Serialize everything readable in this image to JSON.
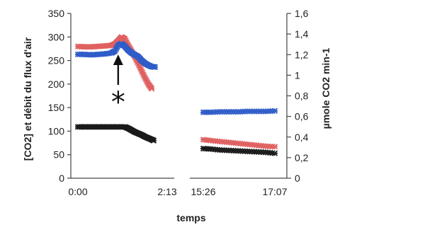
{
  "chart_data": {
    "type": "scatter",
    "x_tick_labels": [
      "0:00",
      "2:13",
      "15:26",
      "17:07"
    ],
    "xlabel": "temps",
    "ylabel_left": "[CO2] et débit du flux d'air",
    "ylabel_right": "µmole CO2 min-1",
    "ylim_left": [
      0,
      350
    ],
    "ylim_right": [
      0,
      1.6
    ],
    "yticks_left": [
      "0",
      "50",
      "100",
      "150",
      "200",
      "250",
      "300",
      "350"
    ],
    "yticks_right": [
      "0",
      "0,2",
      "0,4",
      "0,6",
      "0,8",
      "1",
      "1,2",
      "1,4",
      "1,6"
    ],
    "annotation_symbol": "*",
    "colors": {
      "red": "#e06060",
      "blue": "#2f5cc8",
      "black": "#1a1a1a"
    },
    "series": [
      {
        "color": "red",
        "segments": [
          [
            [
              0,
              280
            ],
            [
              10,
              279
            ],
            [
              20,
              279
            ],
            [
              30,
              280
            ],
            [
              40,
              281
            ],
            [
              50,
              282
            ],
            [
              55,
              285
            ],
            [
              60,
              292
            ],
            [
              65,
              300
            ],
            [
              70,
              296
            ],
            [
              75,
              282
            ],
            [
              80,
              270
            ],
            [
              85,
              257
            ],
            [
              90,
              243
            ],
            [
              95,
              228
            ],
            [
              100,
              213
            ],
            [
              105,
              200
            ],
            [
              110,
              190
            ]
          ],
          [
            [
              172,
              82
            ],
            [
              180,
              80
            ],
            [
              190,
              78
            ],
            [
              200,
              76
            ],
            [
              210,
              74
            ],
            [
              220,
              72
            ],
            [
              230,
              70
            ],
            [
              240,
              68
            ],
            [
              250,
              67
            ]
          ]
        ]
      },
      {
        "color": "blue",
        "segments": [
          [
            [
              0,
              263
            ],
            [
              10,
              263
            ],
            [
              20,
              262
            ],
            [
              30,
              263
            ],
            [
              40,
              264
            ],
            [
              50,
              266
            ],
            [
              55,
              270
            ],
            [
              60,
              282
            ],
            [
              65,
              286
            ],
            [
              70,
              280
            ],
            [
              75,
              272
            ],
            [
              80,
              266
            ],
            [
              85,
              262
            ],
            [
              90,
              258
            ],
            [
              95,
              250
            ],
            [
              100,
              244
            ],
            [
              105,
              240
            ],
            [
              110,
              237
            ],
            [
              115,
              236
            ]
          ],
          [
            [
              172,
              140
            ],
            [
              180,
              140
            ],
            [
              190,
              141
            ],
            [
              200,
              141
            ],
            [
              210,
              141
            ],
            [
              220,
              142
            ],
            [
              230,
              142
            ],
            [
              240,
              142
            ],
            [
              250,
              143
            ]
          ]
        ]
      },
      {
        "color": "black",
        "segments": [
          [
            [
              0,
              109
            ],
            [
              10,
              109
            ],
            [
              20,
              109
            ],
            [
              30,
              109
            ],
            [
              40,
              109
            ],
            [
              50,
              109
            ],
            [
              60,
              109
            ],
            [
              70,
              109
            ],
            [
              75,
              106
            ],
            [
              80,
              102
            ],
            [
              85,
              98
            ],
            [
              90,
              95
            ],
            [
              95,
              92
            ],
            [
              100,
              88
            ],
            [
              105,
              85
            ],
            [
              110,
              82
            ],
            [
              113,
              80
            ]
          ],
          [
            [
              172,
              63
            ],
            [
              180,
              62
            ],
            [
              190,
              60
            ],
            [
              200,
              59
            ],
            [
              210,
              58
            ],
            [
              220,
              57
            ],
            [
              230,
              56
            ],
            [
              240,
              55
            ],
            [
              250,
              53
            ]
          ]
        ]
      }
    ],
    "annotation_x": 60
  }
}
